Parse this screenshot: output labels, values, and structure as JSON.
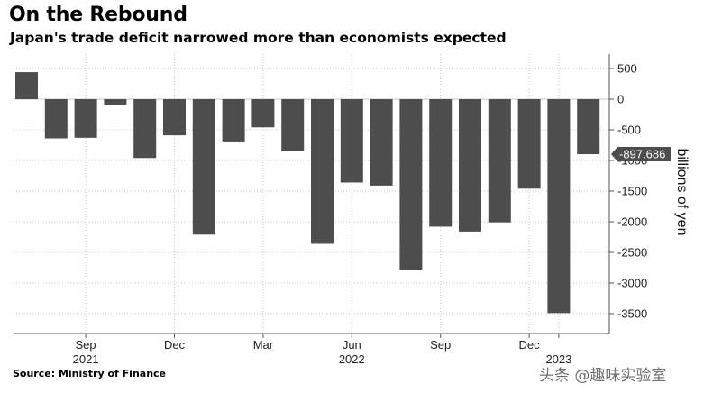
{
  "header": {
    "title": "On the Rebound",
    "subtitle": "Japan's trade deficit narrowed more than economists expected"
  },
  "footer": {
    "source": "Source: Ministry of Finance",
    "watermark": "头条 @趣味实验室"
  },
  "chart_data": {
    "type": "bar",
    "title": "On the Rebound",
    "subtitle": "Japan's trade deficit narrowed more than economists expected",
    "ylabel": "billions of yen",
    "xlabel": "",
    "categories": [
      "2021-07",
      "2021-08",
      "2021-09",
      "2021-10",
      "2021-11",
      "2021-12",
      "2022-01",
      "2022-02",
      "2022-03",
      "2022-04",
      "2022-05",
      "2022-06",
      "2022-07",
      "2022-08",
      "2022-09",
      "2022-10",
      "2022-11",
      "2022-12",
      "2023-01",
      "2023-02"
    ],
    "values": [
      440,
      -640,
      -630,
      -90,
      -960,
      -590,
      -2210,
      -690,
      -460,
      -840,
      -2360,
      -1360,
      -1410,
      -2780,
      -2080,
      -2160,
      -2010,
      -1460,
      -3490,
      -897.686
    ],
    "ylim": [
      -3700,
      600
    ],
    "yticks": [
      500,
      0,
      -500,
      -1000,
      -1500,
      -2000,
      -2500,
      -3000,
      -3500
    ],
    "ytick_labels": [
      "500",
      "0",
      "-500",
      "-1000",
      "-1500",
      "-2000",
      "-2500",
      "-3000",
      "-3500"
    ],
    "last_value_label": "-897.686",
    "xticks": [
      {
        "category": "2021-09",
        "label": "Sep",
        "year": "2021"
      },
      {
        "category": "2021-12",
        "label": "Dec",
        "year": ""
      },
      {
        "category": "2022-03",
        "label": "Mar",
        "year": ""
      },
      {
        "category": "2022-06",
        "label": "Jun",
        "year": "2022"
      },
      {
        "category": "2022-09",
        "label": "Sep",
        "year": ""
      },
      {
        "category": "2022-12",
        "label": "Dec",
        "year": ""
      },
      {
        "category": "2023-01",
        "label": "",
        "year": "2023"
      }
    ],
    "grid": true,
    "legend": "none",
    "colors": {
      "bar": "#4d4d4d",
      "grid": "#c8c8c8",
      "axis": "#555555",
      "label_bg": "#4d4d4d"
    }
  }
}
